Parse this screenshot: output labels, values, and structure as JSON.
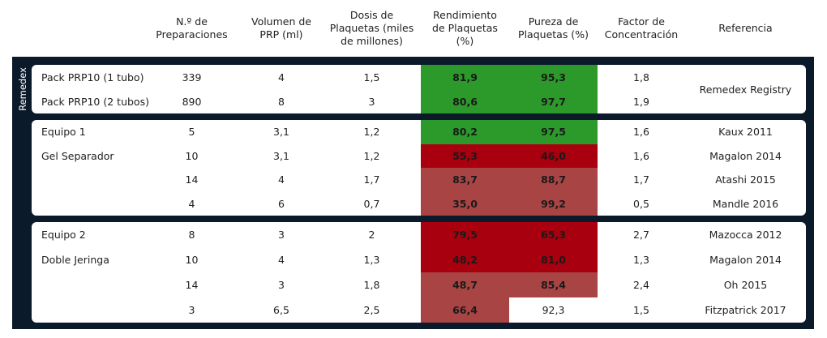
{
  "headers": [
    "",
    "N.º de\nPreparaciones",
    "Volumen de\nPRP (ml)",
    "Dosis de\nPlaquetas (miles\nde millones)",
    "Rendimiento\nde Plaquetas\n(%)",
    "Pureza de\nPlaquetas (%)",
    "Factor de\nConcentración",
    "Referencia"
  ],
  "side_label": "Remedex",
  "colors": {
    "dark_bg": "#0b1a2a",
    "green": "#2b9a2b",
    "red_dark": "#a8000e",
    "red_muted": "#a84444",
    "white": "#ffffff"
  },
  "groups": [
    {
      "rows": [
        {
          "label": "Pack PRP10 (1 tubo)",
          "n": "339",
          "vol": "4",
          "dose": "1,5",
          "yield": "81,9",
          "purity": "95,3",
          "factor": "1,8",
          "yield_color": "green",
          "purity_color": "green"
        },
        {
          "label": "Pack PRP10 (2 tubos)",
          "n": "890",
          "vol": "8",
          "dose": "3",
          "yield": "80,6",
          "purity": "97,7",
          "factor": "1,9",
          "yield_color": "green",
          "purity_color": "green"
        }
      ],
      "reference": "Remedex Registry"
    },
    {
      "rows": [
        {
          "label": "Equipo 1",
          "n": "5",
          "vol": "3,1",
          "dose": "1,2",
          "yield": "80,2",
          "purity": "97,5",
          "factor": "1,6",
          "ref": "Kaux 2011",
          "yield_color": "green",
          "purity_color": "green"
        },
        {
          "label": "Gel Separador",
          "n": "10",
          "vol": "3,1",
          "dose": "1,2",
          "yield": "55,3",
          "purity": "46,0",
          "factor": "1,6",
          "ref": "Magalon 2014",
          "yield_color": "red_dark",
          "purity_color": "red_dark"
        },
        {
          "label": "",
          "n": "14",
          "vol": "4",
          "dose": "1,7",
          "yield": "83,7",
          "purity": "88,7",
          "factor": "1,7",
          "ref": "Atashi 2015",
          "yield_color": "red_muted",
          "purity_color": "red_muted"
        },
        {
          "label": "",
          "n": "4",
          "vol": "6",
          "dose": "0,7",
          "yield": "35,0",
          "purity": "99,2",
          "factor": "0,5",
          "ref": "Mandle 2016",
          "yield_color": "red_muted",
          "purity_color": "red_muted"
        }
      ]
    },
    {
      "rows": [
        {
          "label": "Equipo 2",
          "n": "8",
          "vol": "3",
          "dose": "2",
          "yield": "79,5",
          "purity": "65,3",
          "factor": "2,7",
          "ref": "Mazocca 2012",
          "yield_color": "red_dark",
          "purity_color": "red_dark"
        },
        {
          "label": "Doble Jeringa",
          "n": "10",
          "vol": "4",
          "dose": "1,3",
          "yield": "48,2",
          "purity": "81,0",
          "factor": "1,3",
          "ref": "Magalon 2014",
          "yield_color": "red_dark",
          "purity_color": "red_dark"
        },
        {
          "label": "",
          "n": "14",
          "vol": "3",
          "dose": "1,8",
          "yield": "48,7",
          "purity": "85,4",
          "factor": "2,4",
          "ref": "Oh 2015",
          "yield_color": "red_muted",
          "purity_color": "red_muted"
        },
        {
          "label": "",
          "n": "3",
          "vol": "6,5",
          "dose": "2,5",
          "yield": "66,4",
          "purity": "92,3",
          "factor": "1,5",
          "ref": "Fitzpatrick 2017",
          "yield_color": "red_muted",
          "purity_color": "white"
        }
      ]
    }
  ]
}
